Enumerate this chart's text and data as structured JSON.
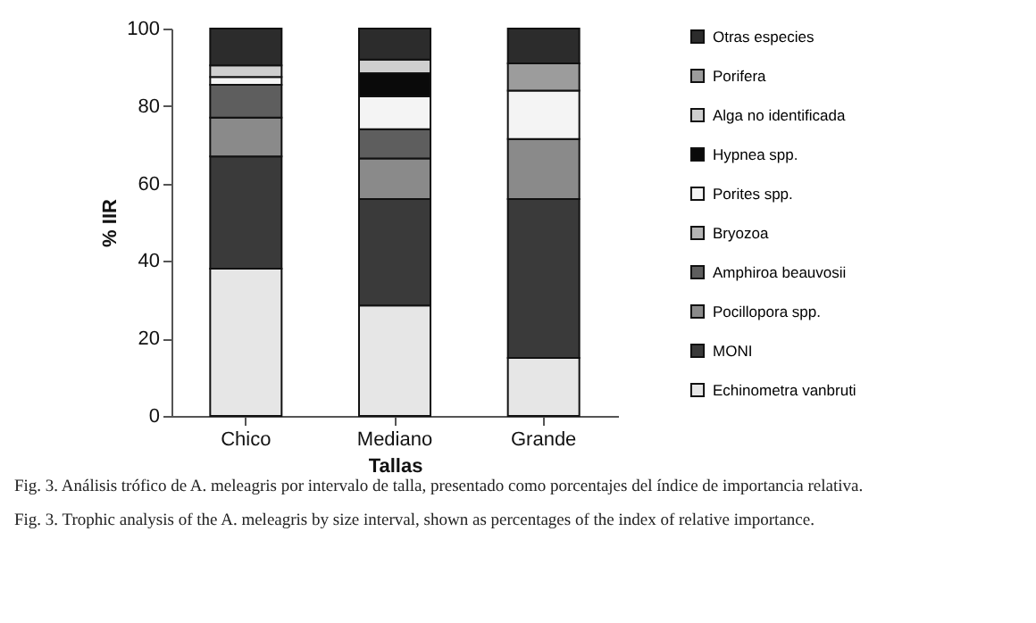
{
  "chart_data": {
    "type": "bar",
    "stacked": true,
    "ylabel": "% IIR",
    "xlabel": "Tallas",
    "categories": [
      "Chico",
      "Mediano",
      "Grande"
    ],
    "series": [
      {
        "name": "Echinometra  vanbruti",
        "color": "#e6e6e6",
        "values": [
          38,
          28.5,
          15
        ]
      },
      {
        "name": "MONI",
        "color": "#3a3a3a",
        "values": [
          29,
          27.5,
          41
        ]
      },
      {
        "name": "Pocillopora spp.",
        "color": "#8a8a8a",
        "values": [
          10,
          10.5,
          15.5
        ]
      },
      {
        "name": "Amphiroa beauvosii",
        "color": "#5e5e5e",
        "values": [
          8.5,
          7.5,
          0
        ]
      },
      {
        "name": "Bryozoa",
        "color": "#b4b4b4",
        "values": [
          0,
          0,
          0
        ]
      },
      {
        "name": "Porites spp.",
        "color": "#f4f4f4",
        "values": [
          2,
          8.5,
          12.5
        ]
      },
      {
        "name": "Hypnea spp.",
        "color": "#0a0a0a",
        "values": [
          0,
          6,
          0
        ]
      },
      {
        "name": "Alga no identificada",
        "color": "#cfcfcf",
        "values": [
          3,
          3.5,
          0
        ]
      },
      {
        "name": "Porifera",
        "color": "#9c9c9c",
        "values": [
          0,
          0,
          7
        ]
      },
      {
        "name": "Otras especies",
        "color": "#2c2c2c",
        "values": [
          9.5,
          8,
          9
        ]
      }
    ],
    "ylim": [
      0,
      100
    ],
    "yticks": [
      0,
      20,
      40,
      60,
      80,
      100
    ],
    "grid": false,
    "legend": "right",
    "annotations": [
      "Fig. 3. Análisis trófico de A. meleagris por intervalo de talla, presentado como porcentajes del índice de importancia relativa.",
      "Fig. 3. Trophic analysis of the A. meleagris by size interval, shown as percentages of the index of relative importance."
    ]
  }
}
